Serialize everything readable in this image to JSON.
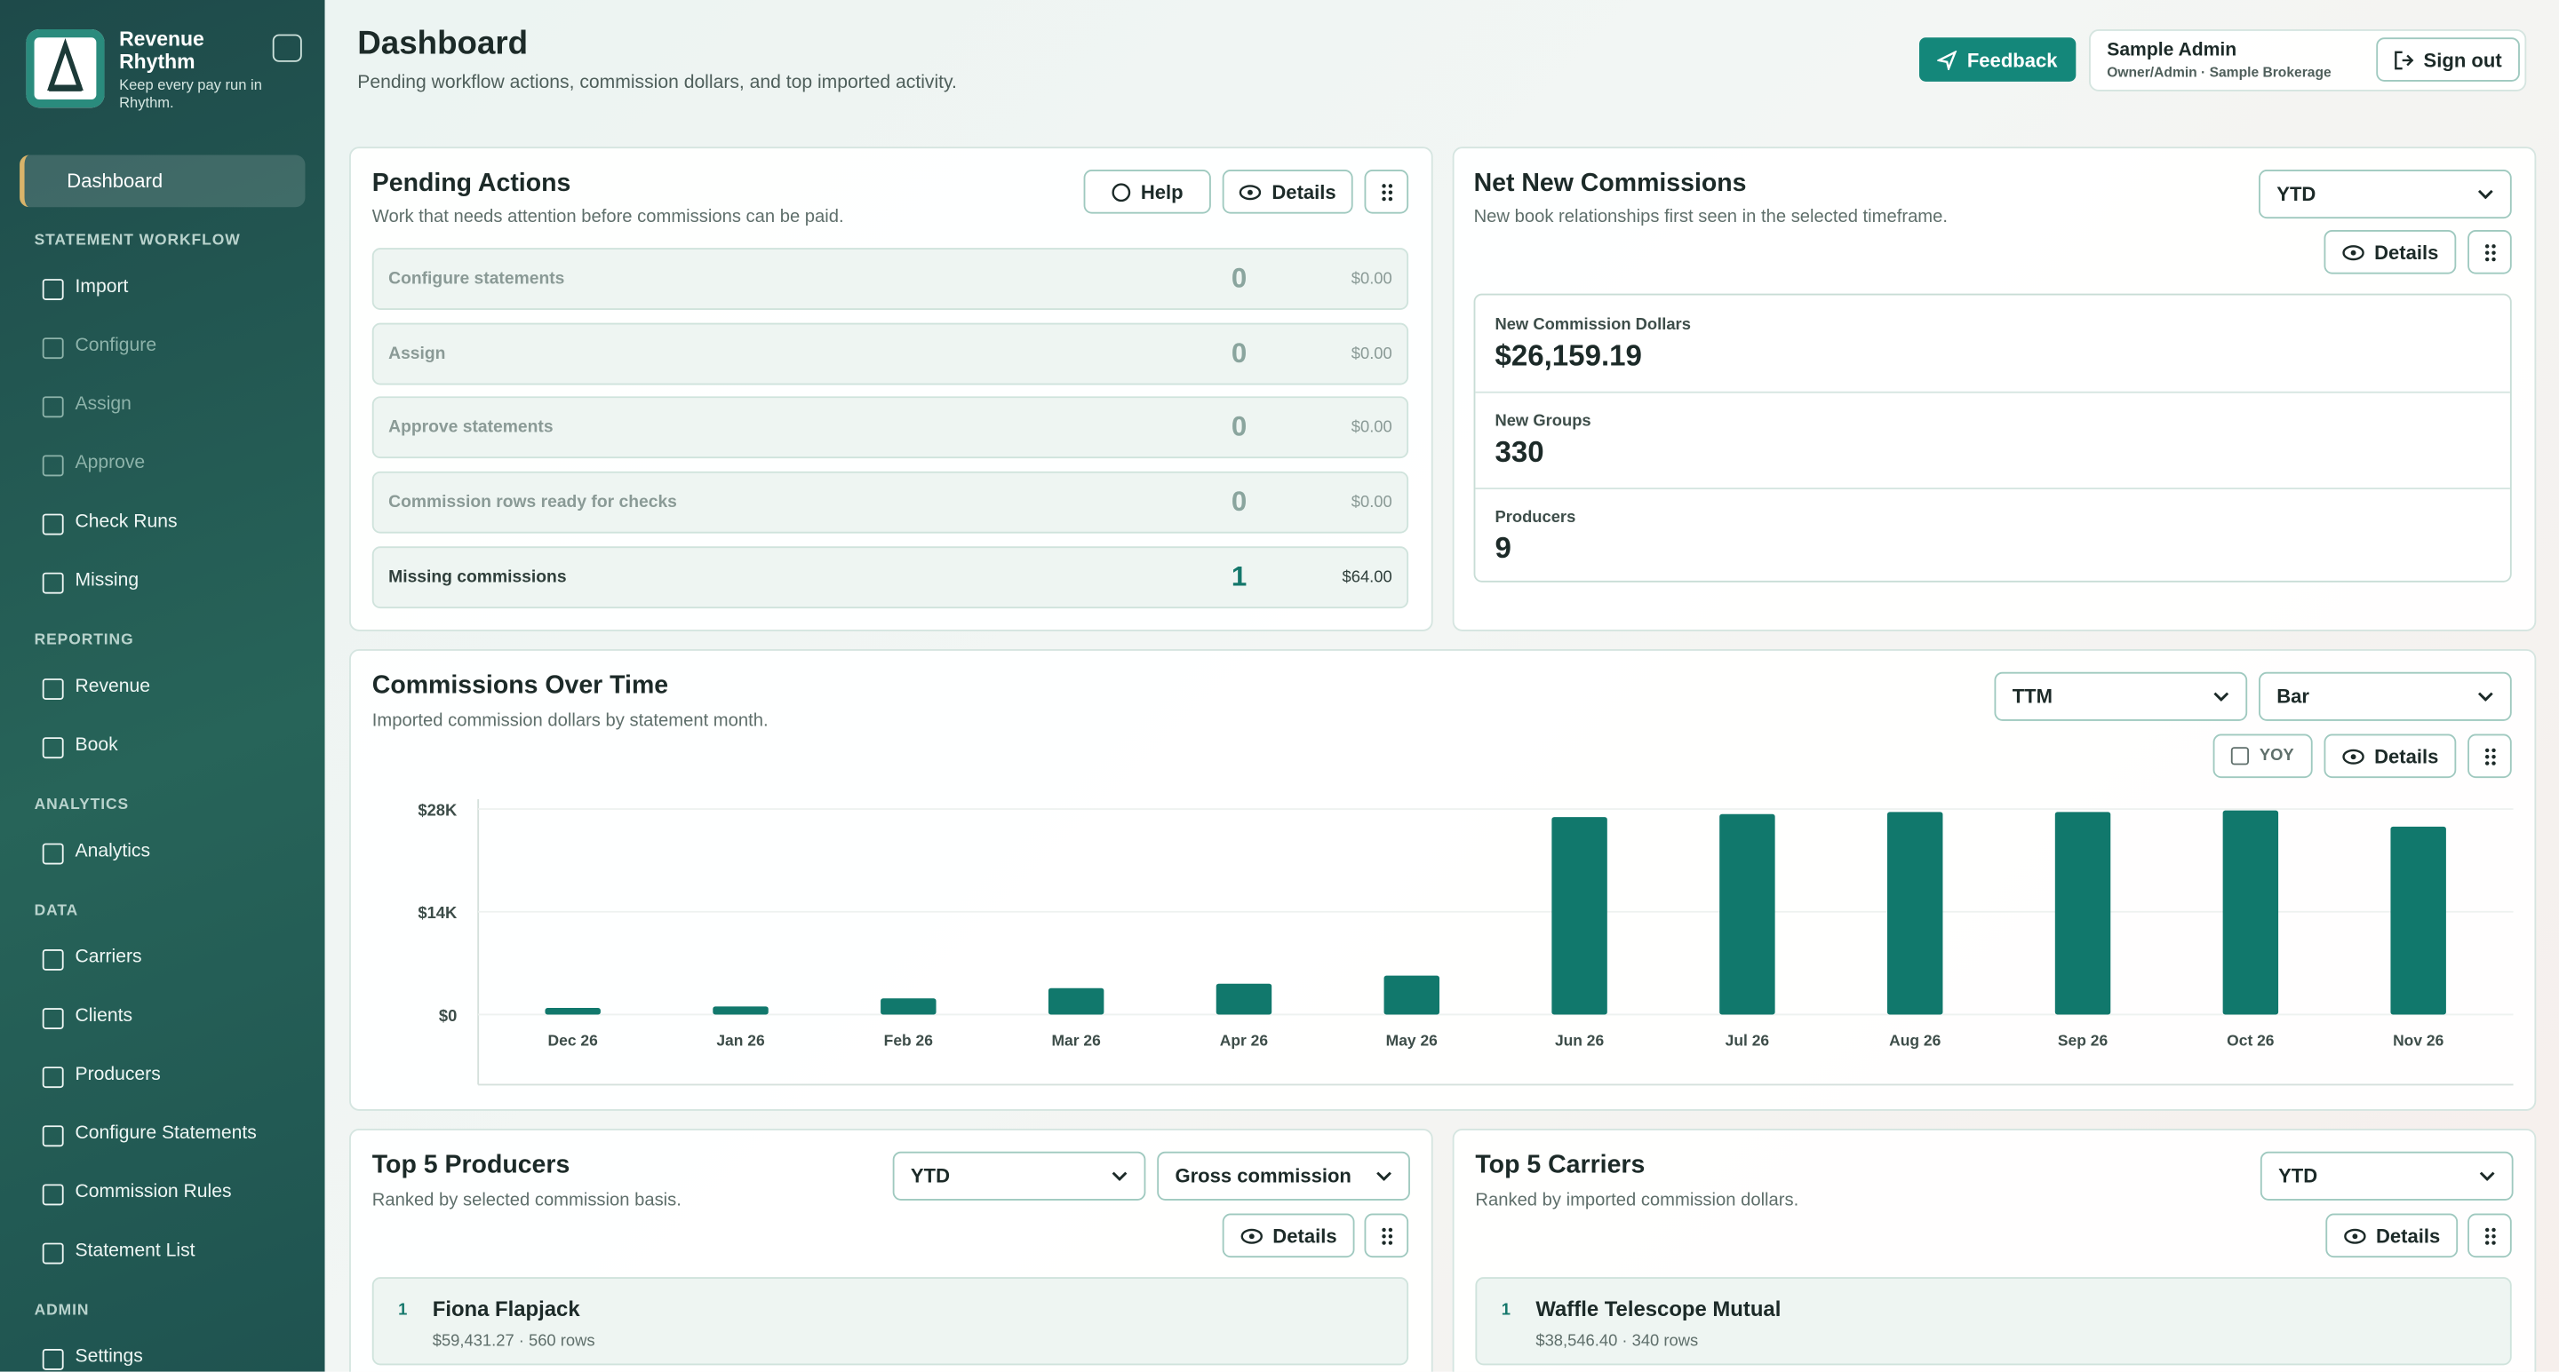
{
  "brand": {
    "name": "Revenue Rhythm",
    "tagline": "Keep every pay run in Rhythm."
  },
  "nav_top": "Dashboard",
  "nav_sections": [
    {
      "title": "STATEMENT WORKFLOW",
      "items": [
        {
          "label": "Import",
          "enabled": true
        },
        {
          "label": "Configure",
          "enabled": false
        },
        {
          "label": "Assign",
          "enabled": false
        },
        {
          "label": "Approve",
          "enabled": false
        },
        {
          "label": "Check Runs",
          "enabled": true
        },
        {
          "label": "Missing",
          "enabled": true
        }
      ]
    },
    {
      "title": "REPORTING",
      "items": [
        {
          "label": "Revenue",
          "enabled": true
        },
        {
          "label": "Book",
          "enabled": true
        }
      ]
    },
    {
      "title": "ANALYTICS",
      "items": [
        {
          "label": "Analytics",
          "enabled": true
        }
      ]
    },
    {
      "title": "DATA",
      "items": [
        {
          "label": "Carriers",
          "enabled": true
        },
        {
          "label": "Clients",
          "enabled": true
        },
        {
          "label": "Producers",
          "enabled": true
        },
        {
          "label": "Configure Statements",
          "enabled": true
        },
        {
          "label": "Commission Rules",
          "enabled": true
        },
        {
          "label": "Statement List",
          "enabled": true
        }
      ]
    },
    {
      "title": "ADMIN",
      "items": [
        {
          "label": "Settings",
          "enabled": true
        }
      ]
    }
  ],
  "header": {
    "title": "Dashboard",
    "subtitle": "Pending workflow actions, commission dollars, and top imported activity.",
    "feedback": "Feedback",
    "user": "Sample Admin",
    "role": "Owner/Admin · Sample Brokerage",
    "sign_out": "Sign out"
  },
  "pending": {
    "title": "Pending Actions",
    "subtitle": "Work that needs attention before commissions can be paid.",
    "help": "Help",
    "details": "Details",
    "rows": [
      {
        "label": "Configure statements",
        "count": "0",
        "amount": "$0.00"
      },
      {
        "label": "Assign",
        "count": "0",
        "amount": "$0.00"
      },
      {
        "label": "Approve statements",
        "count": "0",
        "amount": "$0.00"
      },
      {
        "label": "Commission rows ready for checks",
        "count": "0",
        "amount": "$0.00"
      },
      {
        "label": "Missing commissions",
        "count": "1",
        "amount": "$64.00"
      }
    ]
  },
  "net_new": {
    "title": "Net New Commissions",
    "subtitle": "New book relationships first seen in the selected timeframe.",
    "period": "YTD",
    "details": "Details",
    "metrics": [
      {
        "label": "New Commission Dollars",
        "value": "$26,159.19"
      },
      {
        "label": "New Groups",
        "value": "330"
      },
      {
        "label": "Producers",
        "value": "9"
      }
    ]
  },
  "commissions": {
    "title": "Commissions Over Time",
    "subtitle": "Imported commission dollars by statement month.",
    "period": "TTM",
    "chart_kind": "Bar",
    "yoy": "YOY",
    "details": "Details",
    "chart_data": {
      "type": "bar",
      "color": "#11786c",
      "categories": [
        "Dec 26",
        "Jan 26",
        "Feb 26",
        "Mar 26",
        "Apr 26",
        "May 26",
        "Jun 26",
        "Jul 26",
        "Aug 26",
        "Sep 26",
        "Oct 26",
        "Nov 26"
      ],
      "values": [
        900,
        1100,
        2200,
        3600,
        4200,
        5300,
        26900,
        27300,
        27600,
        27600,
        27800,
        25600
      ],
      "ylim": [
        0,
        30000
      ],
      "yticks": [
        {
          "value": 0,
          "label": "$0"
        },
        {
          "value": 14000,
          "label": "$14K"
        },
        {
          "value": 28000,
          "label": "$28K"
        }
      ]
    }
  },
  "producers": {
    "title": "Top 5 Producers",
    "subtitle": "Ranked by selected commission basis.",
    "period": "YTD",
    "basis": "Gross commission",
    "details": "Details",
    "items": [
      {
        "rank": 1,
        "name": "Fiona Flapjack",
        "detail": "$59,431.27 · 560 rows"
      }
    ]
  },
  "carriers": {
    "title": "Top 5 Carriers",
    "subtitle": "Ranked by imported commission dollars.",
    "period": "YTD",
    "details": "Details",
    "items": [
      {
        "rank": 1,
        "name": "Waffle Telescope Mutual",
        "detail": "$38,546.40 · 340 rows"
      }
    ]
  }
}
